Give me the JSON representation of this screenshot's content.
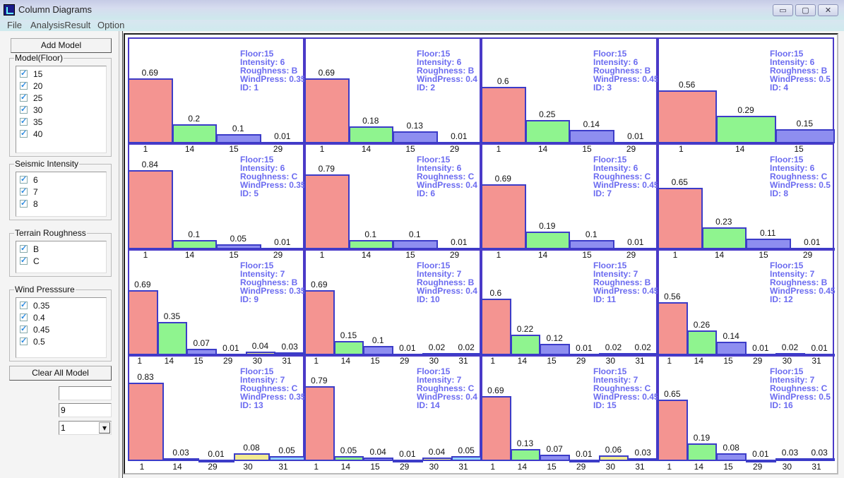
{
  "window": {
    "title": "Column Diagrams",
    "minimize": "▭",
    "maximize": "▢",
    "close": "✕"
  },
  "menu": [
    "File",
    "AnalysisResult",
    "Option"
  ],
  "left": {
    "add_model": "Add Model",
    "clear_all": "Clear All Model",
    "groups": [
      {
        "label": "Model(Floor)",
        "items": [
          "15",
          "20",
          "25",
          "30",
          "35",
          "40"
        ]
      },
      {
        "label": "Seismic Intensity",
        "items": [
          "6",
          "7",
          "8"
        ]
      },
      {
        "label": "Terrain Roughness",
        "items": [
          "B",
          "C"
        ]
      },
      {
        "label": "Wind Presssure",
        "items": [
          "0.35",
          "0.4",
          "0.45",
          "0.5"
        ]
      }
    ],
    "check_mark": "✓",
    "field1": "",
    "field2": "9",
    "select_value": "1",
    "select_arrow": "▾"
  },
  "colors": {
    "1": "#f49491",
    "14": "#8ff48f",
    "15": "#8e8ef0",
    "29": "#8e8ef0",
    "30": "#f2ea90",
    "31": "#92d2fa",
    "border": "#3c3cc8",
    "info": "#6b6bf0"
  },
  "chart_data": [
    {
      "type": "bar",
      "ylim": [
        0,
        1.12
      ],
      "info": [
        "Floor:15",
        "Intensity: 6",
        "Roughness: B",
        "WindPress: 0.35",
        "ID: 1"
      ],
      "categories": [
        "1",
        "14",
        "15",
        "29"
      ],
      "values": [
        0.69,
        0.2,
        0.1,
        0.01
      ]
    },
    {
      "type": "bar",
      "ylim": [
        0,
        1.12
      ],
      "info": [
        "Floor:15",
        "Intensity: 6",
        "Roughness: B",
        "WindPress: 0.4",
        "ID: 2"
      ],
      "categories": [
        "1",
        "14",
        "15",
        "29"
      ],
      "values": [
        0.69,
        0.18,
        0.13,
        0.01
      ]
    },
    {
      "type": "bar",
      "ylim": [
        0,
        1.12
      ],
      "info": [
        "Floor:15",
        "Intensity: 6",
        "Roughness: B",
        "WindPress: 0.45",
        "ID: 3"
      ],
      "categories": [
        "1",
        "14",
        "15",
        "29"
      ],
      "values": [
        0.6,
        0.25,
        0.14,
        0.01
      ]
    },
    {
      "type": "bar",
      "ylim": [
        0,
        1.12
      ],
      "info": [
        "Floor:15",
        "Intensity: 6",
        "Roughness: B",
        "WindPress: 0.5",
        "ID: 4"
      ],
      "categories": [
        "1",
        "14",
        "15"
      ],
      "values": [
        0.56,
        0.29,
        0.15
      ]
    },
    {
      "type": "bar",
      "ylim": [
        0,
        1.12
      ],
      "info": [
        "Floor:15",
        "Intensity: 6",
        "Roughness: C",
        "WindPress: 0.35",
        "ID: 5"
      ],
      "categories": [
        "1",
        "14",
        "15",
        "29"
      ],
      "values": [
        0.84,
        0.1,
        0.05,
        0.01
      ]
    },
    {
      "type": "bar",
      "ylim": [
        0,
        1.12
      ],
      "info": [
        "Floor:15",
        "Intensity: 6",
        "Roughness: C",
        "WindPress: 0.4",
        "ID: 6"
      ],
      "categories": [
        "1",
        "14",
        "15",
        "29"
      ],
      "values": [
        0.79,
        0.1,
        0.1,
        0.01
      ]
    },
    {
      "type": "bar",
      "ylim": [
        0,
        1.12
      ],
      "info": [
        "Floor:15",
        "Intensity: 6",
        "Roughness: C",
        "WindPress: 0.45",
        "ID: 7"
      ],
      "categories": [
        "1",
        "14",
        "15",
        "29"
      ],
      "values": [
        0.69,
        0.19,
        0.1,
        0.01
      ]
    },
    {
      "type": "bar",
      "ylim": [
        0,
        1.12
      ],
      "info": [
        "Floor:15",
        "Intensity: 6",
        "Roughness: C",
        "WindPress: 0.5",
        "ID: 8"
      ],
      "categories": [
        "1",
        "14",
        "15",
        "29"
      ],
      "values": [
        0.65,
        0.23,
        0.11,
        0.01
      ]
    },
    {
      "type": "bar",
      "ylim": [
        0,
        1.12
      ],
      "info": [
        "Floor:15",
        "Intensity: 7",
        "Roughness: B",
        "WindPress: 0.35",
        "ID: 9"
      ],
      "categories": [
        "1",
        "14",
        "15",
        "29",
        "30",
        "31"
      ],
      "values": [
        0.69,
        0.35,
        0.07,
        0.01,
        0.04,
        0.03
      ]
    },
    {
      "type": "bar",
      "ylim": [
        0,
        1.12
      ],
      "info": [
        "Floor:15",
        "Intensity: 7",
        "Roughness: B",
        "WindPress: 0.4",
        "ID: 10"
      ],
      "categories": [
        "1",
        "14",
        "15",
        "29",
        "30",
        "31"
      ],
      "values": [
        0.69,
        0.15,
        0.1,
        0.01,
        0.02,
        0.02
      ]
    },
    {
      "type": "bar",
      "ylim": [
        0,
        1.12
      ],
      "info": [
        "Floor:15",
        "Intensity: 7",
        "Roughness: B",
        "WindPress: 0.45",
        "ID: 11"
      ],
      "categories": [
        "1",
        "14",
        "15",
        "29",
        "30",
        "31"
      ],
      "values": [
        0.6,
        0.22,
        0.12,
        0.01,
        0.02,
        0.02
      ]
    },
    {
      "type": "bar",
      "ylim": [
        0,
        1.12
      ],
      "info": [
        "Floor:15",
        "Intensity: 7",
        "Roughness: B",
        "WindPress: 0.45",
        "ID: 12"
      ],
      "categories": [
        "1",
        "14",
        "15",
        "29",
        "30",
        "31"
      ],
      "values": [
        0.56,
        0.26,
        0.14,
        0.01,
        0.02,
        0.01
      ]
    },
    {
      "type": "bar",
      "ylim": [
        0,
        1.12
      ],
      "info": [
        "Floor:15",
        "Intensity: 7",
        "Roughness: C",
        "WindPress: 0.35",
        "ID: 13"
      ],
      "categories": [
        "1",
        "14",
        "29",
        "30",
        "31"
      ],
      "values": [
        0.83,
        0.03,
        0.01,
        0.08,
        0.05
      ]
    },
    {
      "type": "bar",
      "ylim": [
        0,
        1.12
      ],
      "info": [
        "Floor:15",
        "Intensity: 7",
        "Roughness: C",
        "WindPress: 0.4",
        "ID: 14"
      ],
      "categories": [
        "1",
        "14",
        "15",
        "29",
        "30",
        "31"
      ],
      "values": [
        0.79,
        0.05,
        0.04,
        0.01,
        0.04,
        0.05
      ]
    },
    {
      "type": "bar",
      "ylim": [
        0,
        1.12
      ],
      "info": [
        "Floor:15",
        "Intensity: 7",
        "Roughness: C",
        "WindPress: 0.45",
        "ID: 15"
      ],
      "categories": [
        "1",
        "14",
        "15",
        "29",
        "30",
        "31"
      ],
      "values": [
        0.69,
        0.13,
        0.07,
        0.01,
        0.06,
        0.03
      ]
    },
    {
      "type": "bar",
      "ylim": [
        0,
        1.12
      ],
      "info": [
        "Floor:15",
        "Intensity: 7",
        "Roughness: C",
        "WindPress: 0.5",
        "ID: 16"
      ],
      "categories": [
        "1",
        "14",
        "15",
        "29",
        "30",
        "31"
      ],
      "values": [
        0.65,
        0.19,
        0.08,
        0.01,
        0.03,
        0.03
      ]
    }
  ]
}
